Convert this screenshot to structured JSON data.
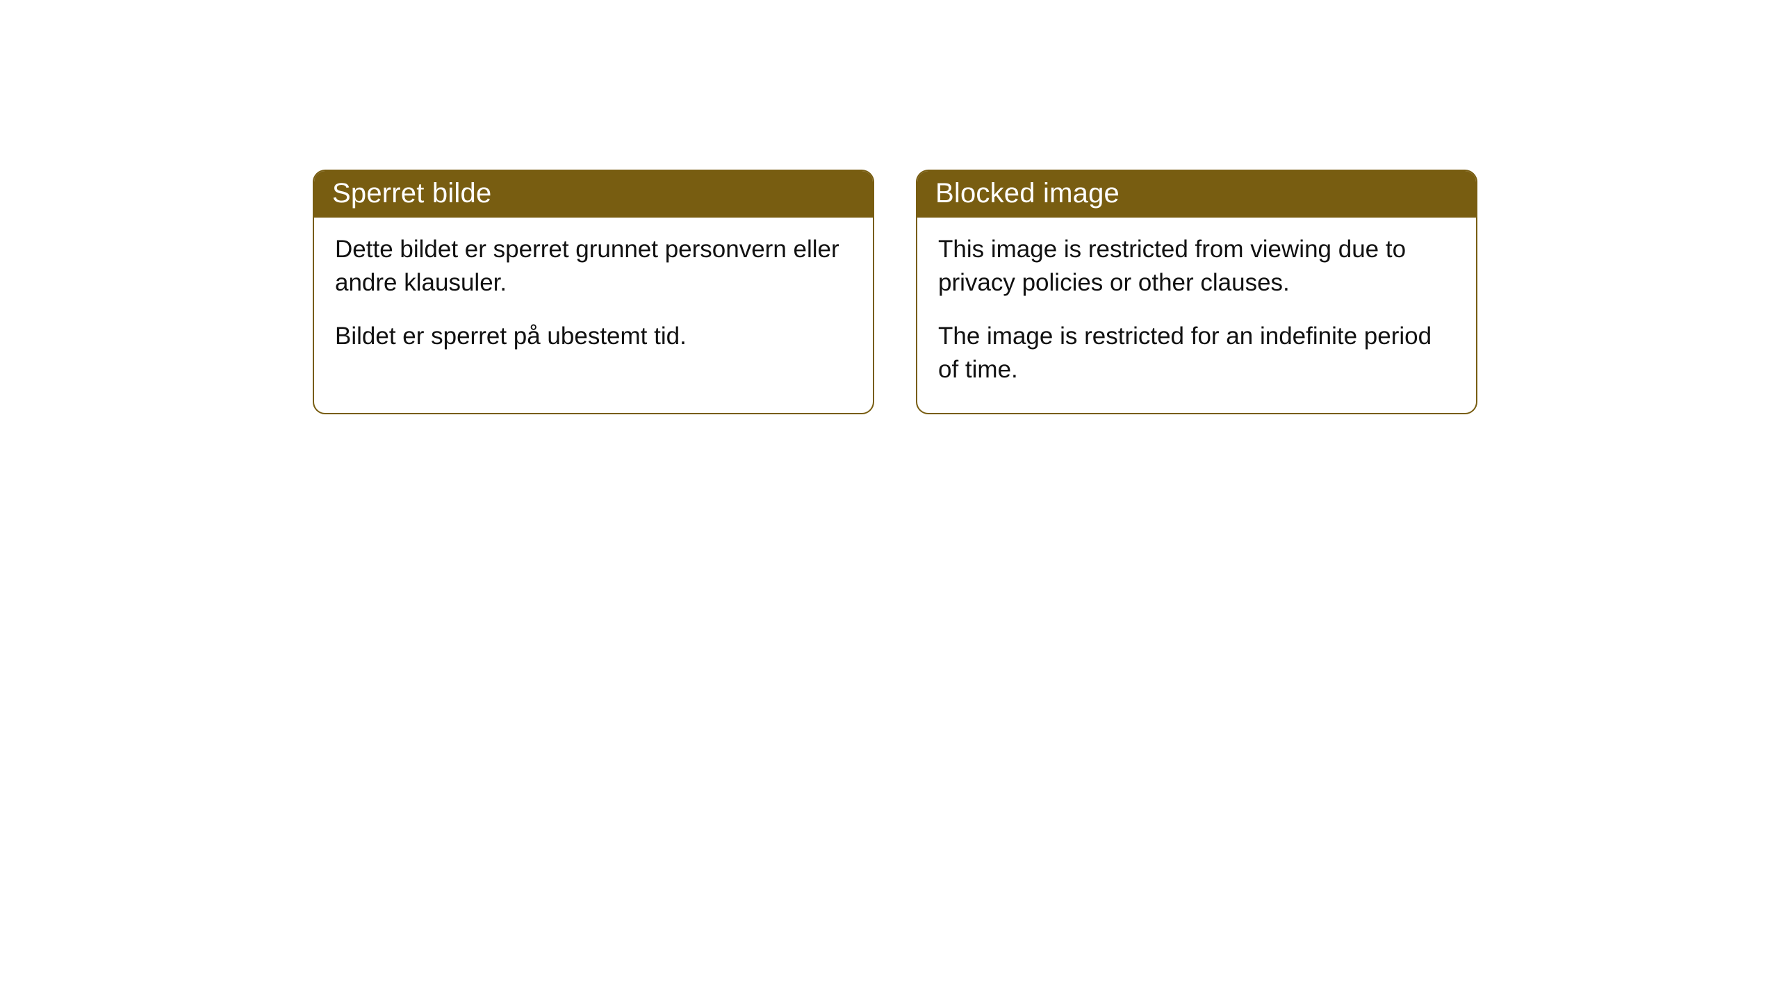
{
  "cards": [
    {
      "header": "Sperret bilde",
      "para1": "Dette bildet er sperret grunnet personvern eller andre klausuler.",
      "para2": "Bildet er sperret på ubestemt tid."
    },
    {
      "header": "Blocked image",
      "para1": "This image is restricted from viewing due to privacy policies or other clauses.",
      "para2": "The image is restricted for an indefinite period of time."
    }
  ],
  "styles": {
    "accent_color": "#785d11",
    "background_color": "#ffffff",
    "text_color": "#111111",
    "header_text_color": "#ffffff",
    "border_radius": 18,
    "header_fontsize": 40,
    "body_fontsize": 35
  }
}
